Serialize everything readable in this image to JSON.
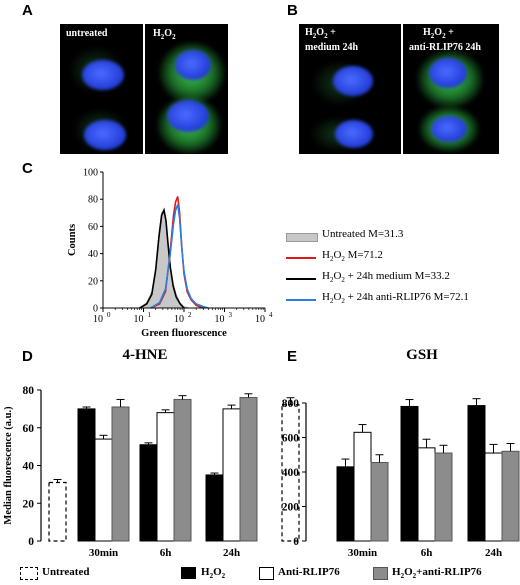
{
  "panels": {
    "A": {
      "letter": "A",
      "left_label": "untreated",
      "right_label_main": "H",
      "right_label_sub": "2",
      "right_label_main2": "O",
      "right_label_sub2": "2"
    },
    "B": {
      "letter": "B",
      "left_l1a": "H",
      "left_l1b": "2",
      "left_l1c": "O",
      "left_l1d": "2",
      "left_l1e": " +",
      "left_l2": "medium 24h",
      "right_l1a": "H",
      "right_l1b": "2",
      "right_l1c": "O",
      "right_l1d": "2",
      "right_l1e": " +",
      "right_l2": "anti-RLIP76 24h"
    },
    "C": {
      "letter": "C"
    },
    "D": {
      "letter": "D"
    },
    "E": {
      "letter": "E"
    }
  },
  "legend_c": [
    {
      "label": "Untreated M=31.3",
      "color": "#c8c8c8"
    },
    {
      "label": "H2O2 M=71.2",
      "color": "#e01818"
    },
    {
      "label": "H2O2 + 24h medium M=33.2",
      "color": "#000000"
    },
    {
      "label": "H2O2 + 24h anti-RLIP76 M=72.1",
      "color": "#2a7fe0"
    }
  ],
  "legend_bottom": [
    {
      "label": "Untreated",
      "style": "dashed"
    },
    {
      "label": "H2O2",
      "style": "black"
    },
    {
      "label": "Anti-RLIP76",
      "style": "white"
    },
    {
      "label": "H2O2+anti-RLIP76",
      "style": "gray"
    }
  ],
  "colors": {
    "h2o2": "#000000",
    "anti": "#ffffff",
    "combo": "#8c8c8c",
    "untreated": "#ffffff"
  },
  "chart_data": [
    {
      "type": "line",
      "title": "",
      "xlabel": "Green fluorescence",
      "ylabel": "Counts",
      "xscale": "log",
      "xlim": [
        1,
        10000
      ],
      "ylim": [
        0,
        100
      ],
      "x_ticks": [
        "10",
        "10",
        "10",
        "10",
        "10"
      ],
      "x_tick_exponents": [
        "0",
        "1",
        "2",
        "3",
        "4"
      ],
      "y_ticks": [
        "0",
        "20",
        "40",
        "60",
        "80",
        "100"
      ],
      "series": [
        {
          "name": "Untreated M=31.3",
          "color": "#c8c8c8",
          "filled": true,
          "points": [
            [
              8,
              0
            ],
            [
              12,
              4
            ],
            [
              16,
              12
            ],
            [
              20,
              30
            ],
            [
              24,
              55
            ],
            [
              28,
              70
            ],
            [
              32,
              72
            ],
            [
              36,
              66
            ],
            [
              40,
              50
            ],
            [
              46,
              32
            ],
            [
              54,
              18
            ],
            [
              64,
              10
            ],
            [
              80,
              4
            ],
            [
              100,
              1
            ],
            [
              130,
              0
            ]
          ]
        },
        {
          "name": "H2O2 M=71.2",
          "color": "#e01818",
          "points": [
            [
              15,
              0
            ],
            [
              25,
              3
            ],
            [
              35,
              12
            ],
            [
              45,
              40
            ],
            [
              55,
              68
            ],
            [
              62,
              78
            ],
            [
              70,
              82
            ],
            [
              78,
              70
            ],
            [
              88,
              45
            ],
            [
              100,
              25
            ],
            [
              120,
              12
            ],
            [
              150,
              6
            ],
            [
              200,
              2
            ],
            [
              300,
              0
            ]
          ]
        },
        {
          "name": "H2O2 + 24h medium M=33.2",
          "color": "#000000",
          "points": [
            [
              8,
              0
            ],
            [
              12,
              3
            ],
            [
              16,
              10
            ],
            [
              20,
              28
            ],
            [
              24,
              52
            ],
            [
              28,
              68
            ],
            [
              32,
              72
            ],
            [
              36,
              64
            ],
            [
              40,
              48
            ],
            [
              46,
              30
            ],
            [
              54,
              16
            ],
            [
              64,
              8
            ],
            [
              80,
              3
            ],
            [
              100,
              0
            ]
          ]
        },
        {
          "name": "H2O2 + 24h anti-RLIP76 M=72.1",
          "color": "#2a7fe0",
          "points": [
            [
              15,
              0
            ],
            [
              25,
              4
            ],
            [
              35,
              14
            ],
            [
              45,
              38
            ],
            [
              55,
              62
            ],
            [
              62,
              72
            ],
            [
              70,
              76
            ],
            [
              78,
              66
            ],
            [
              88,
              44
            ],
            [
              100,
              27
            ],
            [
              120,
              14
            ],
            [
              150,
              7
            ],
            [
              200,
              3
            ],
            [
              300,
              1
            ],
            [
              400,
              0
            ]
          ]
        }
      ]
    },
    {
      "type": "bar",
      "title": "4-HNE",
      "ylabel": "Median fluorescence (a.u.)",
      "ylim": [
        0,
        80
      ],
      "y_ticks": [
        "0",
        "20",
        "40",
        "60",
        "80"
      ],
      "categories": [
        "30min",
        "6h",
        "24h"
      ],
      "untreated": 31,
      "series": [
        {
          "name": "H2O2",
          "values": [
            70,
            51,
            35
          ]
        },
        {
          "name": "Anti-RLIP76",
          "values": [
            54,
            68,
            70
          ]
        },
        {
          "name": "H2O2+anti-RLIP76",
          "values": [
            71,
            75,
            76
          ]
        }
      ],
      "errors": [
        [
          1,
          1,
          1
        ],
        [
          2,
          1.5,
          2
        ],
        [
          4,
          2,
          2
        ]
      ]
    },
    {
      "type": "bar",
      "title": "GSH",
      "ylim": [
        0,
        800
      ],
      "y_ticks": [
        "0",
        "200",
        "400",
        "600",
        "800"
      ],
      "categories": [
        "30min",
        "6h",
        "24h"
      ],
      "untreated": 790,
      "series": [
        {
          "name": "H2O2",
          "values": [
            430,
            780,
            785
          ]
        },
        {
          "name": "Anti-RLIP76",
          "values": [
            630,
            540,
            510
          ]
        },
        {
          "name": "H2O2+anti-RLIP76",
          "values": [
            455,
            510,
            520
          ]
        }
      ],
      "errors": [
        [
          45,
          40,
          40
        ],
        [
          45,
          50,
          50
        ],
        [
          45,
          45,
          45
        ]
      ]
    }
  ]
}
